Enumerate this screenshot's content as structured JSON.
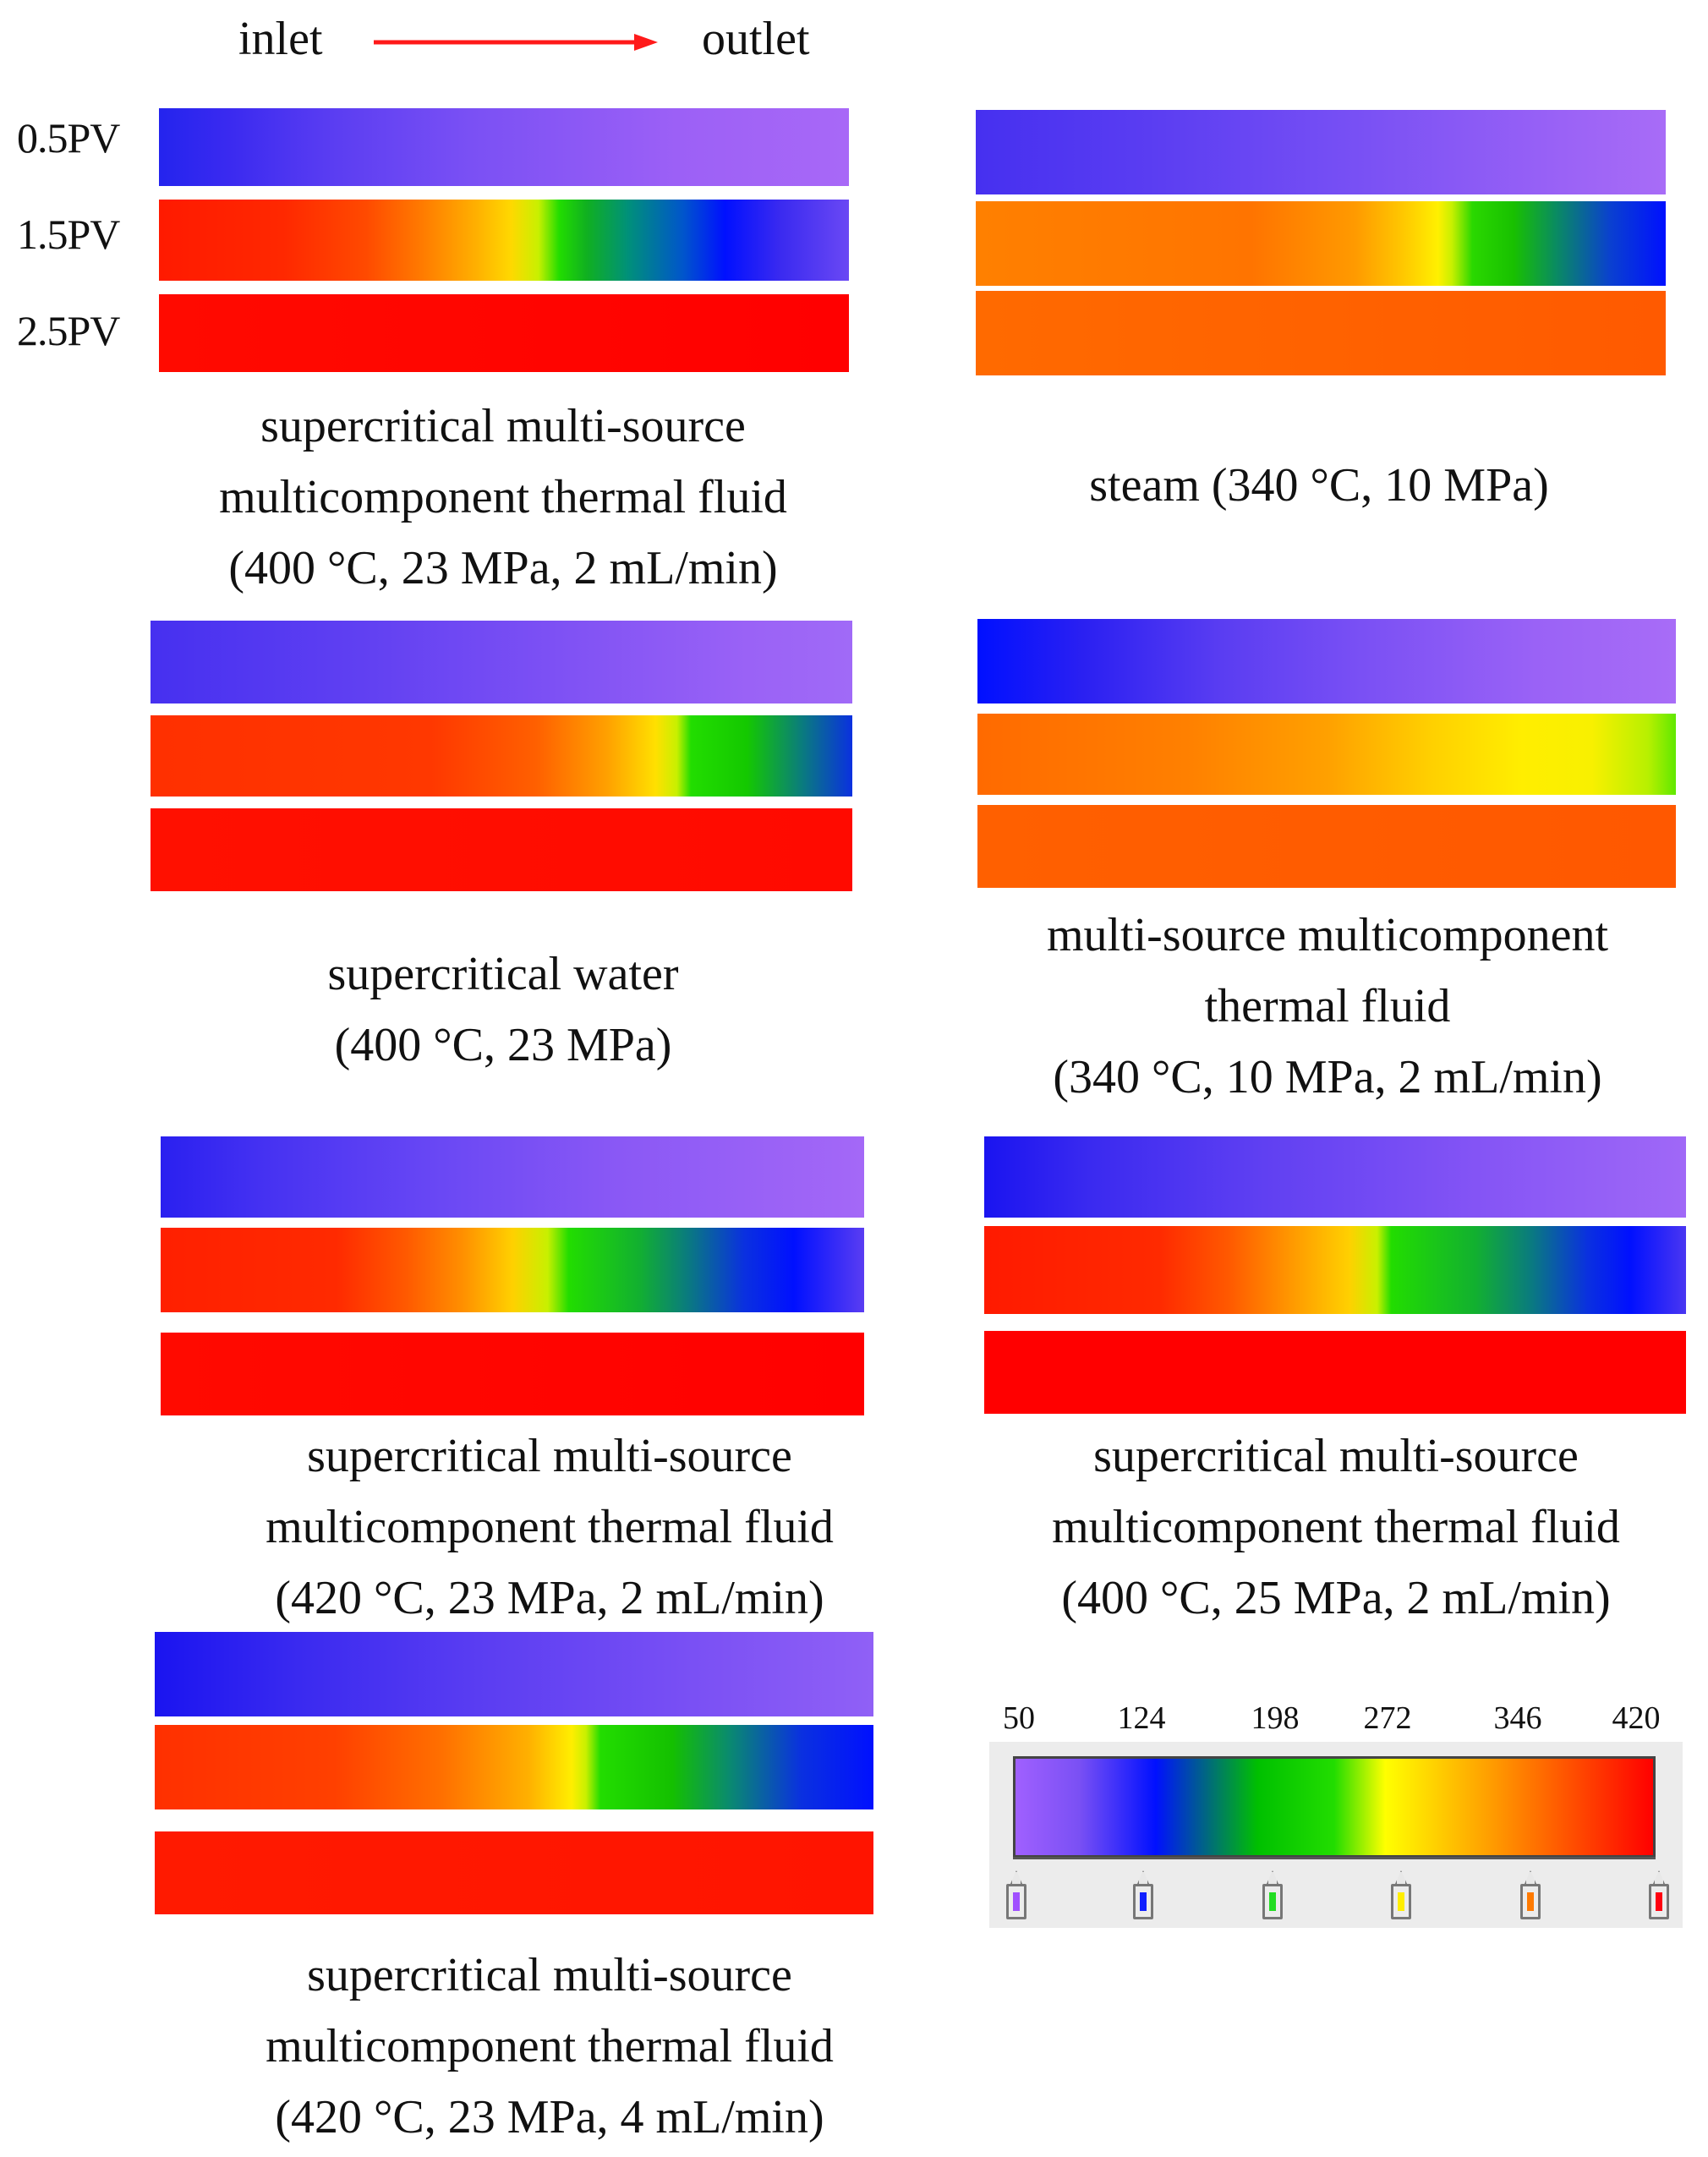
{
  "header": {
    "inlet": "inlet",
    "outlet": "outlet",
    "arrow_color": "#ff1a1a"
  },
  "row_labels": [
    "0.5PV",
    "1.5PV",
    "2.5PV"
  ],
  "panels": [
    {
      "id": "p1",
      "caption": [
        "supercritical multi-source",
        "multicomponent thermal fluid",
        "(400 °C, 23 MPa, 2 mL/min)"
      ],
      "bars": [
        "linear-gradient(90deg,#2424ee 0%,#3a2af0 10%,#5a3df2 25%,#7a50f4 45%,#9c60f6 75%,#a868f7 100%)",
        "linear-gradient(90deg,#ff1a00 0%,#ff2800 18%,#ff4a00 30%,#ff7a00 38%,#ffb000 46%,#ffd800 51%,#c8f000 55%,#22dd00 58%,#10b020 62%,#00907a 68%,#0055cc 76%,#0010ff 82%,#3a2af0 90%,#6a48f4 100%)",
        "linear-gradient(90deg,#ff0a00 0%,#ff0000 100%)"
      ]
    },
    {
      "id": "p2",
      "caption": [
        "steam (340 °C, 10 MPa)"
      ],
      "bars": [
        "linear-gradient(90deg,#4630f0 0%,#5a3df2 25%,#7850f4 55%,#9a62f6 85%,#a86cf7 100%)",
        "linear-gradient(90deg,#ff8000 0%,#ff7400 40%,#ff9a00 55%,#ffc800 62%,#fff000 67%,#c8f000 69%,#2ad800 72%,#18c000 78%,#0a8c60 84%,#0a40d0 92%,#0010ff 100%)",
        "linear-gradient(90deg,#ff6a00 0%,#ff5a00 100%)"
      ]
    },
    {
      "id": "p3",
      "caption": [
        "supercritical water",
        "(400 °C, 23 MPa)"
      ],
      "bars": [
        "linear-gradient(90deg,#4630f0 0%,#6040f2 30%,#8052f4 60%,#9a62f6 85%,#a06af7 100%)",
        "linear-gradient(90deg,#ff3000 0%,#ff3800 40%,#ff6000 55%,#ffa000 65%,#ffe000 72%,#c8f000 75%,#22dd00 77%,#14c800 85%,#0a7a80 93%,#0a30e0 100%)",
        "linear-gradient(90deg,#ff1000 0%,#ff0a00 100%)"
      ]
    },
    {
      "id": "p4",
      "caption": [
        "multi-source multicomponent",
        "thermal fluid",
        "(340 °C, 10 MPa, 2 mL/min)"
      ],
      "bars": [
        "linear-gradient(90deg,#0010ff 0%,#2a20f2 15%,#5a3df2 35%,#7a50f4 55%,#9a62f6 80%,#a86cf7 100%)",
        "linear-gradient(90deg,#ff6a00 0%,#ff8000 30%,#ffa000 50%,#ffd000 65%,#ffee00 78%,#f8f000 88%,#b8f000 96%,#60e800 100%)",
        "linear-gradient(90deg,#ff6000 0%,#ff5800 100%)"
      ]
    },
    {
      "id": "p5",
      "caption": [
        "supercritical multi-source",
        "multicomponent thermal fluid",
        "(420 °C, 23 MPa, 2 mL/min)"
      ],
      "bars": [
        "linear-gradient(90deg,#2a20f0 0%,#4632f2 15%,#6a48f4 40%,#8a58f5 65%,#a468f7 100%)",
        "linear-gradient(90deg,#ff2000 0%,#ff2a00 25%,#ff5a00 35%,#ff9000 43%,#ffd000 50%,#c8f000 55%,#22dd00 58%,#12b030 68%,#0a7a80 75%,#0a30e0 83%,#0010ff 90%,#5a3df2 100%)",
        "linear-gradient(90deg,#ff0a00 0%,#ff0000 100%)"
      ]
    },
    {
      "id": "p6",
      "caption": [
        "supercritical multi-source",
        "multicomponent thermal fluid",
        "(400 °C, 25 MPa, 2 mL/min)"
      ],
      "bars": [
        "linear-gradient(90deg,#1a14f0 0%,#3a2af0 15%,#6040f2 40%,#8454f5 70%,#a068f7 100%)",
        "linear-gradient(90deg,#ff1a00 0%,#ff2a00 25%,#ff5a00 35%,#ff9a00 44%,#ffd000 52%,#c8f000 56%,#22dd00 58%,#12b030 70%,#0a7a80 78%,#0a30e0 86%,#0010ff 92%,#4a36f2 100%)",
        "linear-gradient(90deg,#ff0000 0%,#ff0000 100%)"
      ]
    },
    {
      "id": "p7",
      "caption": [
        "supercritical multi-source",
        "multicomponent thermal fluid",
        "(420 °C, 23 MPa, 4 mL/min)"
      ],
      "bars": [
        "linear-gradient(90deg,#1a14f0 0%,#3a2af0 20%,#5a3df2 45%,#7a50f4 75%,#9060f6 100%)",
        "linear-gradient(90deg,#ff3000 0%,#ff4000 25%,#ff7000 40%,#ffb000 52%,#ffee00 58%,#c8f000 60%,#22dd00 62%,#14c000 72%,#0a8a70 80%,#0a30e0 90%,#0010ff 100%)",
        "linear-gradient(90deg,#ff1a00 0%,#ff1400 100%)"
      ]
    }
  ],
  "colorbar": {
    "ticks": [
      "50",
      "124",
      "198",
      "272",
      "346",
      "420"
    ],
    "gradient": "linear-gradient(90deg,#a060ff 0%,#7a50f4 10%,#0010ff 22%,#00c000 38%,#22dd00 50%,#ffff00 58%,#ff9a00 75%,#ff0000 100%)",
    "marker_colors": [
      "#a050ff",
      "#1020ff",
      "#22dd22",
      "#ffee00",
      "#ff7a00",
      "#ff0010"
    ]
  }
}
